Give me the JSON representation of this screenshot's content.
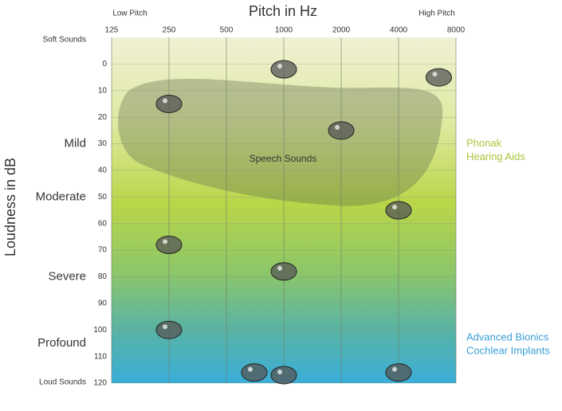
{
  "chart_data": {
    "type": "audiogram",
    "title": "Pitch in Hz",
    "x_low_label": "Low Pitch",
    "x_high_label": "High Pitch",
    "y_label": "Loudness in dB",
    "y_top_label": "Soft Sounds",
    "y_bottom_label": "Loud Sounds",
    "xlim": [
      125,
      8000
    ],
    "xticks": [
      125,
      250,
      500,
      1000,
      2000,
      4000,
      8000
    ],
    "log_x": true,
    "ylim": [
      -10,
      120
    ],
    "yticks": [
      0,
      10,
      20,
      30,
      40,
      50,
      60,
      70,
      80,
      90,
      100,
      110,
      120
    ],
    "y_reversed": true,
    "grid": true,
    "levels": [
      {
        "label": "Mild",
        "value": 30
      },
      {
        "label": "Moderate",
        "value": 50
      },
      {
        "label": "Severe",
        "value": 80
      },
      {
        "label": "Profound",
        "value": 105
      }
    ],
    "region_label": "Speech Sounds",
    "devices": [
      {
        "lines": [
          "Phonak",
          "Hearing Aids"
        ],
        "color": "#a9c63c",
        "value": 30
      },
      {
        "lines": [
          "Advanced Bionics",
          "Cochlear Implants"
        ],
        "color": "#3a9fd8",
        "value": 103
      }
    ],
    "points": {
      "x": [
        250,
        1000,
        6500,
        2000,
        4000,
        250,
        1000,
        250,
        700,
        1000,
        4000
      ],
      "y": [
        15,
        2,
        5,
        25,
        55,
        68,
        78,
        100,
        116,
        117,
        116
      ],
      "color": "#555555"
    }
  }
}
